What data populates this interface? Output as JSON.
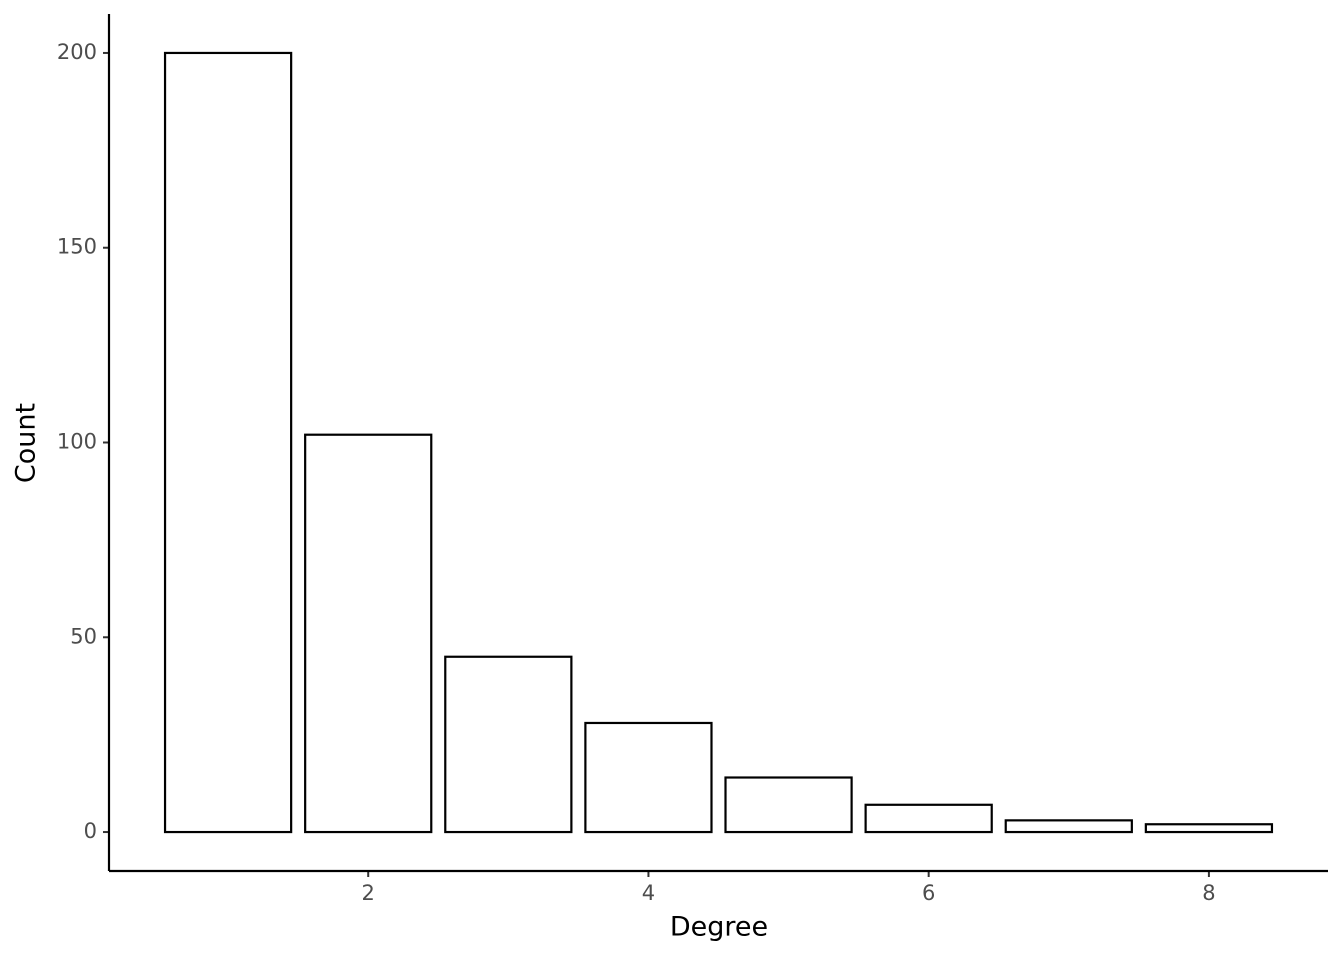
{
  "chart_data": {
    "type": "bar",
    "x_label": "Degree",
    "y_label": "Count",
    "x": [
      1,
      2,
      3,
      4,
      5,
      6,
      7,
      8
    ],
    "values": [
      200,
      102,
      45,
      28,
      14,
      7,
      3,
      2
    ],
    "color": "#ffffff",
    "edgecolor": "#000000",
    "xlim": [
      0.15,
      8.85
    ],
    "xticks": [
      2,
      4,
      6,
      8
    ],
    "ylim": [
      -10,
      210
    ],
    "yticks": [
      0,
      50,
      100,
      150,
      200
    ],
    "grid": false
  }
}
